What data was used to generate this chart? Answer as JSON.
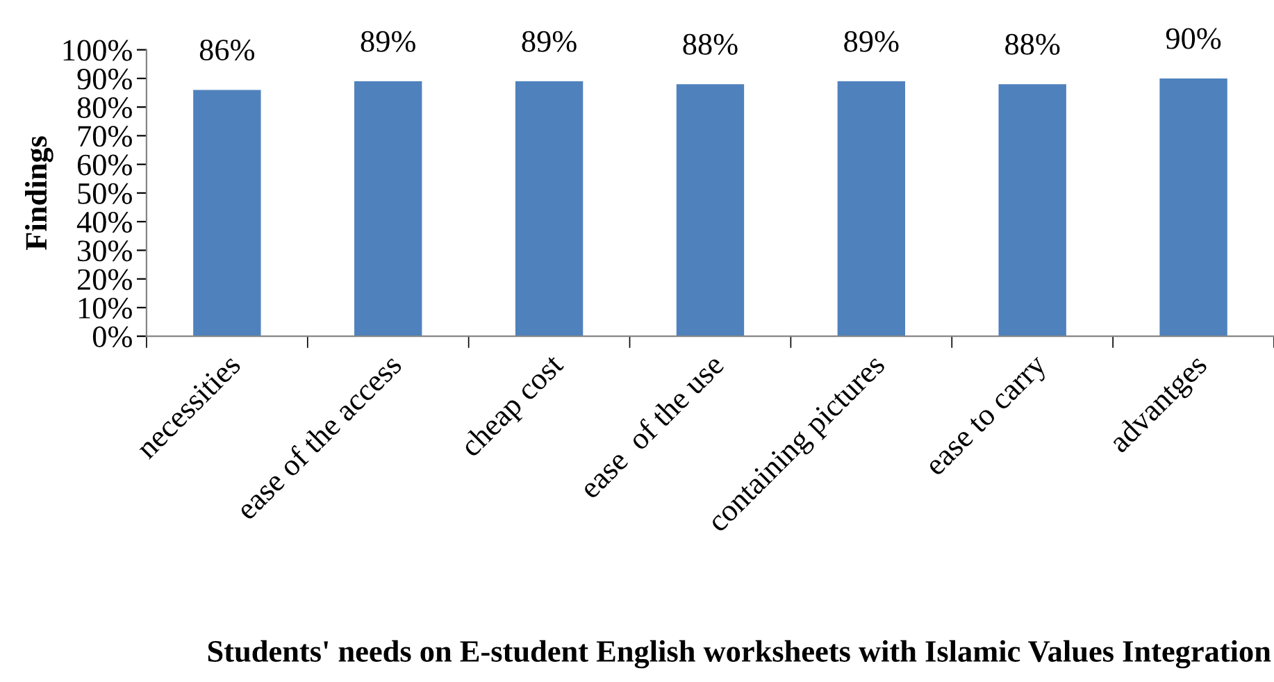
{
  "chart_data": {
    "type": "bar",
    "categories": [
      "necessities",
      "ease of the access",
      "cheap cost",
      "ease  of the use",
      "containing pictures",
      "ease to carry",
      "advantges"
    ],
    "values": [
      86,
      89,
      89,
      88,
      89,
      88,
      90
    ],
    "color": "#4f81bd",
    "data_labels": true,
    "value_labels": [
      "86%",
      "89%",
      "89%",
      "88%",
      "89%",
      "88%",
      "90%"
    ],
    "ylabel": "Findings",
    "xlabel": "Students' needs on E-student English worksheets with Islamic Values Integration",
    "ylim": [
      0,
      100
    ],
    "yticks": [
      {
        "value": 0,
        "label": "0%"
      },
      {
        "value": 10,
        "label": "10%"
      },
      {
        "value": 20,
        "label": "20%"
      },
      {
        "value": 30,
        "label": "30%"
      },
      {
        "value": 40,
        "label": "40%"
      },
      {
        "value": 50,
        "label": "50%"
      },
      {
        "value": 60,
        "label": "60%"
      },
      {
        "value": 70,
        "label": "70%"
      },
      {
        "value": 80,
        "label": "80%"
      },
      {
        "value": 90,
        "label": "90%"
      },
      {
        "value": 100,
        "label": "100%"
      }
    ],
    "grid": false,
    "legend": false
  }
}
